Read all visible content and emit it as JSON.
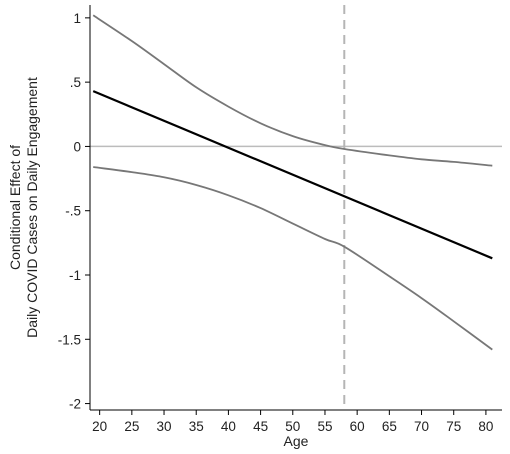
{
  "chart_data": {
    "type": "line",
    "title": "",
    "xlabel": "Age",
    "ylabel_lines": [
      "Conditional Effect of",
      "Daily COVID Cases on Daily Engagement"
    ],
    "xlim": [
      18.5,
      82.5
    ],
    "ylim": [
      -2.05,
      1.1
    ],
    "x_ticks": [
      20,
      25,
      30,
      35,
      40,
      45,
      50,
      55,
      60,
      65,
      70,
      75,
      80
    ],
    "x_tick_labels": [
      "20",
      "25",
      "30",
      "35",
      "40",
      "45",
      "50",
      "55",
      "60",
      "65",
      "70",
      "75",
      "80"
    ],
    "y_ticks": [
      1,
      0.5,
      0,
      -0.5,
      -1,
      -1.5,
      -2
    ],
    "y_tick_labels": [
      "1",
      ".5",
      "0",
      "-.5",
      "-1",
      "-1.5",
      "-2"
    ],
    "zero_line": 0,
    "reference_line": {
      "x": 58,
      "style": "dashed"
    },
    "series": [
      {
        "role": "estimate",
        "color": "#000000",
        "x": [
          19,
          81
        ],
        "values": [
          0.43,
          -0.87
        ]
      },
      {
        "role": "upper-ci",
        "color": "#777777",
        "x": [
          19,
          25,
          30,
          35,
          40,
          45,
          50,
          55,
          58,
          65,
          70,
          75,
          81
        ],
        "values": [
          1.02,
          0.82,
          0.64,
          0.46,
          0.31,
          0.18,
          0.08,
          0.01,
          -0.02,
          -0.07,
          -0.1,
          -0.12,
          -0.15
        ]
      },
      {
        "role": "lower-ci",
        "color": "#777777",
        "x": [
          19,
          25,
          30,
          35,
          40,
          45,
          50,
          55,
          58,
          65,
          70,
          75,
          81
        ],
        "values": [
          -0.16,
          -0.2,
          -0.24,
          -0.3,
          -0.38,
          -0.48,
          -0.6,
          -0.72,
          -0.78,
          -1.01,
          -1.18,
          -1.36,
          -1.58
        ]
      }
    ]
  }
}
